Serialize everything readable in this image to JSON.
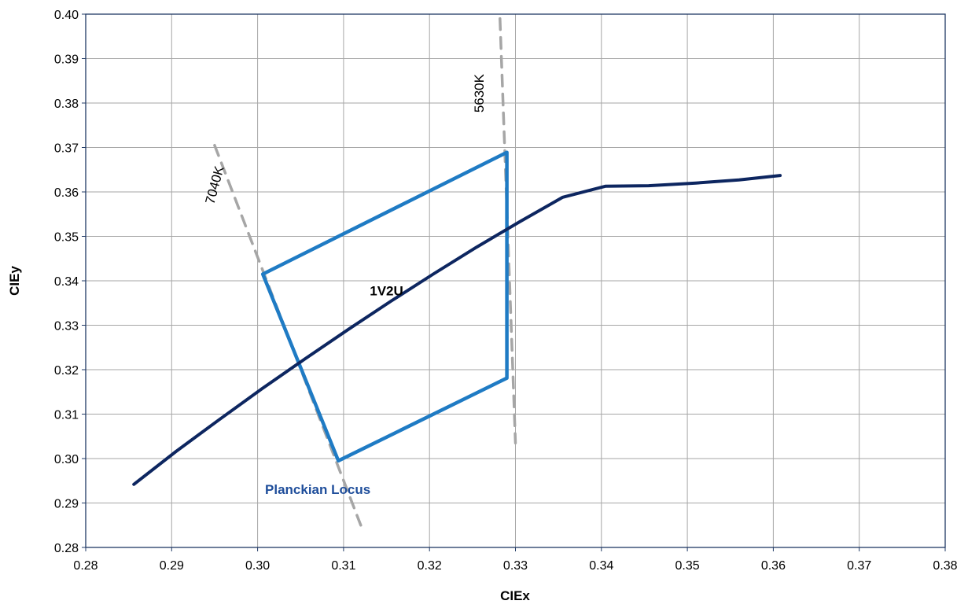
{
  "chart_data": {
    "type": "scatter",
    "title": "",
    "xlabel": "CIEx",
    "ylabel": "CIEy",
    "xlim": [
      0.28,
      0.38
    ],
    "ylim": [
      0.28,
      0.4
    ],
    "xticks": [
      "0.28",
      "0.29",
      "0.30",
      "0.31",
      "0.32",
      "0.33",
      "0.34",
      "0.35",
      "0.36",
      "0.37",
      "0.38"
    ],
    "yticks": [
      "0.28",
      "0.29",
      "0.30",
      "0.31",
      "0.32",
      "0.33",
      "0.34",
      "0.35",
      "0.36",
      "0.37",
      "0.38",
      "0.39",
      "0.40"
    ],
    "grid": true,
    "legend": "none",
    "colors": {
      "planckian": "#0d2660",
      "quadrangle": "#1f7bc4",
      "cct_lines": "#a6a6a6",
      "grid": "#a6a6a6",
      "axis": "#1f3864",
      "planckian_label": "#1f4e9b"
    },
    "series": [
      {
        "name": "",
        "role": "planckian-locus",
        "style": "solid",
        "points": [
          [
            0.2856,
            0.2942
          ],
          [
            0.2905,
            0.3016
          ],
          [
            0.2955,
            0.3087
          ],
          [
            0.3005,
            0.3157
          ],
          [
            0.3055,
            0.3224
          ],
          [
            0.3105,
            0.329
          ],
          [
            0.3155,
            0.3354
          ],
          [
            0.3205,
            0.3416
          ],
          [
            0.3255,
            0.3476
          ],
          [
            0.3305,
            0.3533
          ],
          [
            0.3355,
            0.3588
          ],
          [
            0.3405,
            0.3613
          ],
          [
            0.3455,
            0.3614
          ],
          [
            0.351,
            0.362
          ],
          [
            0.356,
            0.3627
          ],
          [
            0.3608,
            0.3637
          ]
        ]
      },
      {
        "name": "",
        "role": "1V2U-quadrangle",
        "style": "solid",
        "points": [
          [
            0.3006,
            0.3415
          ],
          [
            0.329,
            0.3689
          ],
          [
            0.329,
            0.3181
          ],
          [
            0.3094,
            0.2995
          ],
          [
            0.3006,
            0.3415
          ]
        ]
      },
      {
        "name": "",
        "role": "7040K-isotemperature",
        "style": "dashed",
        "points": [
          [
            0.295,
            0.3705
          ],
          [
            0.312,
            0.285
          ]
        ]
      },
      {
        "name": "",
        "role": "5630K-isotemperature",
        "style": "dashed",
        "points": [
          [
            0.3282,
            0.399
          ],
          [
            0.33,
            0.3035
          ]
        ]
      }
    ],
    "annotations": [
      {
        "text": "Planckian Locus",
        "x": 0.307,
        "y": 0.292,
        "rotation": 0
      },
      {
        "text": "1V2U",
        "x": 0.315,
        "y": 0.3367,
        "rotation": 0
      },
      {
        "text": "7040K",
        "x": 0.2955,
        "y": 0.3613,
        "rotation": -75
      },
      {
        "text": "5630K",
        "x": 0.3263,
        "y": 0.3822,
        "rotation": -90
      }
    ]
  }
}
